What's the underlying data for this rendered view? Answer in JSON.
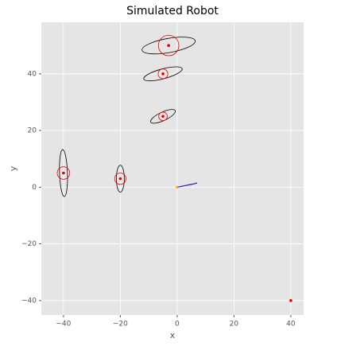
{
  "chart_data": {
    "type": "scatter",
    "title": "Simulated Robot",
    "x_label": "x",
    "y_label": "y",
    "xlim": [
      -47.8,
      44.5
    ],
    "ylim": [
      -45.1,
      58.2
    ],
    "xticks": [
      {
        "value": -40,
        "label": "−40"
      },
      {
        "value": -20,
        "label": "−20"
      },
      0,
      20,
      40
    ],
    "yticks": [
      {
        "value": -40,
        "label": "−40"
      },
      {
        "value": -20,
        "label": "−20"
      },
      0,
      20,
      40
    ],
    "grid": true,
    "landmarks": {
      "color": "#e00000",
      "x": [
        -3,
        -5,
        -5,
        -40,
        -20,
        40
      ],
      "y": [
        50,
        40,
        25,
        5,
        3,
        -40
      ]
    },
    "estimates": {
      "color": "#e00000",
      "x": [
        -3,
        -5,
        -5,
        -40,
        -20
      ],
      "y": [
        50,
        40,
        25,
        5,
        3
      ],
      "r": [
        3.6,
        1.7,
        1.5,
        2.2,
        2
      ]
    },
    "ellipses": {
      "color": "#000000",
      "x": [
        -3,
        -5,
        -5,
        -40,
        -20
      ],
      "y": [
        50,
        40,
        25,
        5,
        3
      ],
      "width": [
        19,
        14,
        9.5,
        16.5,
        9.5
      ],
      "height": [
        5,
        3.5,
        3,
        2.8,
        2.8
      ],
      "angle": [
        10,
        15,
        25,
        92,
        90
      ]
    },
    "path": {
      "color": "#2020c0",
      "x": [
        0,
        1,
        2,
        3,
        4,
        5,
        6,
        7
      ],
      "y": [
        0,
        0.2,
        0.4,
        0.6,
        0.8,
        1.0,
        1.2,
        1.5
      ]
    },
    "start": {
      "color": "#ffa500",
      "x": [
        0
      ],
      "y": [
        0
      ]
    }
  }
}
